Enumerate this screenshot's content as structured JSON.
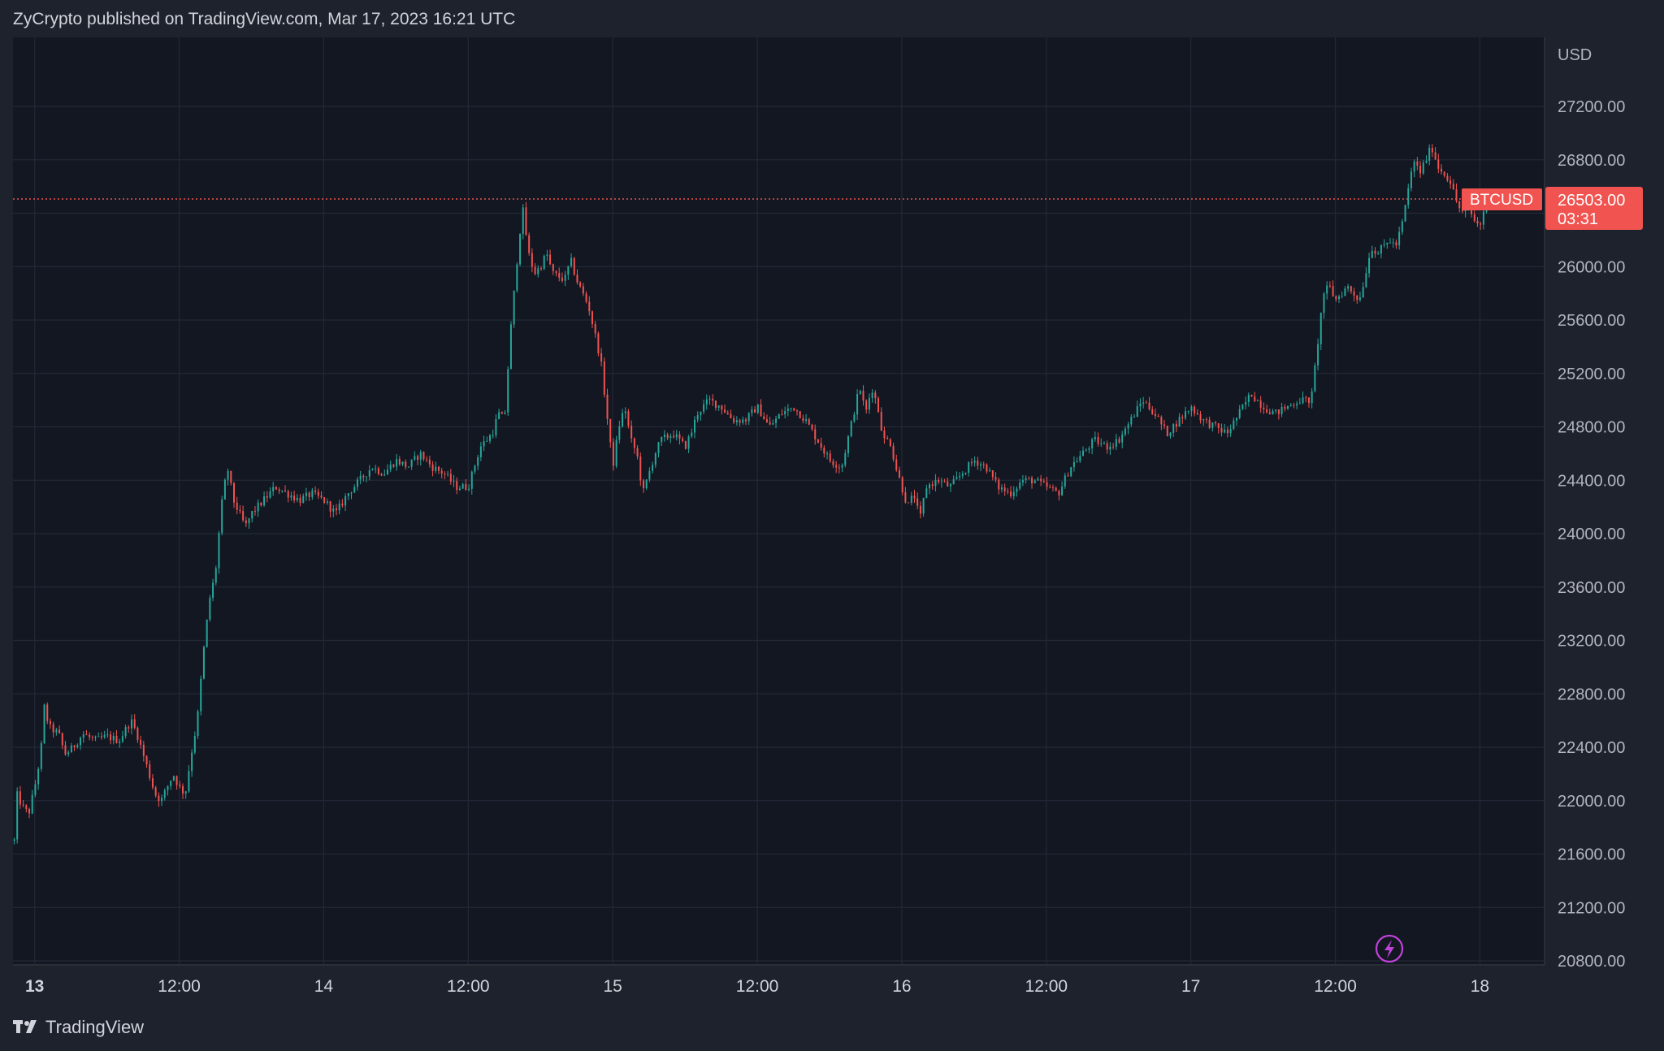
{
  "header": {
    "text": "ZyCrypto published on TradingView.com, Mar 17, 2023 16:21 UTC"
  },
  "footer": {
    "brand": "TradingView"
  },
  "colors": {
    "background": "#131722",
    "frame": "#1e222d",
    "grid": "#232836",
    "up": "#26a69a",
    "down": "#ef5350",
    "last_price_label": "#f05350",
    "lightning_icon": "#c042d8"
  },
  "icons": {
    "lightning": "lightning-icon",
    "logo": "tradingview-logo-icon"
  },
  "chart_data": {
    "type": "candlestick",
    "symbol": "BTCUSD",
    "currency": "USD",
    "last_price": 26503.0,
    "last_price_label": "26503.00",
    "countdown": "03:31",
    "y_ticks": [
      "27200.00",
      "26800.00",
      "26400.00",
      "26000.00",
      "25600.00",
      "25200.00",
      "24800.00",
      "24400.00",
      "24000.00",
      "23600.00",
      "23200.00",
      "22800.00",
      "22400.00",
      "22000.00",
      "21600.00",
      "21200.00",
      "20800.00"
    ],
    "y_range": [
      20800,
      27200
    ],
    "x_ticks": [
      {
        "label": "13",
        "hour": 0,
        "bold": true
      },
      {
        "label": "12:00",
        "hour": 12
      },
      {
        "label": "14",
        "hour": 24
      },
      {
        "label": "12:00",
        "hour": 36
      },
      {
        "label": "15",
        "hour": 48
      },
      {
        "label": "12:00",
        "hour": 60
      },
      {
        "label": "16",
        "hour": 72
      },
      {
        "label": "12:00",
        "hour": 84
      },
      {
        "label": "17",
        "hour": 96
      },
      {
        "label": "12:00",
        "hour": 108
      },
      {
        "label": "18",
        "hour": 120
      }
    ],
    "x_range_hours": [
      -1.8,
      125.3
    ],
    "price_path": [
      [
        -1.7,
        21700
      ],
      [
        -1.5,
        22050
      ],
      [
        -1.0,
        21950
      ],
      [
        -0.5,
        21900
      ],
      [
        0.0,
        22100
      ],
      [
        0.5,
        22350
      ],
      [
        0.8,
        22700
      ],
      [
        1.2,
        22550
      ],
      [
        2.0,
        22500
      ],
      [
        2.5,
        22350
      ],
      [
        3.0,
        22380
      ],
      [
        4.0,
        22500
      ],
      [
        5.0,
        22450
      ],
      [
        6.0,
        22480
      ],
      [
        7.0,
        22450
      ],
      [
        8.0,
        22600
      ],
      [
        8.5,
        22500
      ],
      [
        9.0,
        22350
      ],
      [
        9.5,
        22200
      ],
      [
        10.0,
        22050
      ],
      [
        10.5,
        22000
      ],
      [
        11.0,
        22100
      ],
      [
        11.5,
        22200
      ],
      [
        12.0,
        22100
      ],
      [
        12.5,
        22050
      ],
      [
        13.0,
        22350
      ],
      [
        13.5,
        22600
      ],
      [
        14.0,
        23100
      ],
      [
        14.5,
        23500
      ],
      [
        15.0,
        23700
      ],
      [
        15.5,
        24200
      ],
      [
        16.0,
        24500
      ],
      [
        16.5,
        24250
      ],
      [
        17.0,
        24150
      ],
      [
        17.5,
        24050
      ],
      [
        18.0,
        24150
      ],
      [
        19.0,
        24250
      ],
      [
        20.0,
        24350
      ],
      [
        21.0,
        24300
      ],
      [
        22.0,
        24250
      ],
      [
        23.0,
        24300
      ],
      [
        24.0,
        24250
      ],
      [
        25.0,
        24150
      ],
      [
        26.0,
        24300
      ],
      [
        27.0,
        24400
      ],
      [
        28.0,
        24500
      ],
      [
        29.0,
        24450
      ],
      [
        30.0,
        24550
      ],
      [
        31.0,
        24500
      ],
      [
        32.0,
        24600
      ],
      [
        33.0,
        24500
      ],
      [
        34.0,
        24450
      ],
      [
        35.0,
        24350
      ],
      [
        36.0,
        24350
      ],
      [
        37.0,
        24650
      ],
      [
        38.0,
        24750
      ],
      [
        38.5,
        24900
      ],
      [
        39.0,
        24850
      ],
      [
        39.5,
        25500
      ],
      [
        40.0,
        26000
      ],
      [
        40.5,
        26450
      ],
      [
        41.0,
        26100
      ],
      [
        41.5,
        25950
      ],
      [
        42.0,
        26000
      ],
      [
        42.5,
        26100
      ],
      [
        43.0,
        25950
      ],
      [
        44.0,
        25900
      ],
      [
        44.5,
        26050
      ],
      [
        45.0,
        25900
      ],
      [
        45.5,
        25800
      ],
      [
        46.0,
        25700
      ],
      [
        46.5,
        25500
      ],
      [
        47.0,
        25300
      ],
      [
        47.5,
        24900
      ],
      [
        48.0,
        24500
      ],
      [
        48.5,
        24800
      ],
      [
        49.0,
        24950
      ],
      [
        49.5,
        24700
      ],
      [
        50.0,
        24600
      ],
      [
        50.5,
        24300
      ],
      [
        51.0,
        24450
      ],
      [
        51.5,
        24600
      ],
      [
        52.0,
        24700
      ],
      [
        53.0,
        24750
      ],
      [
        54.0,
        24650
      ],
      [
        54.5,
        24750
      ],
      [
        55.0,
        24900
      ],
      [
        56.0,
        25000
      ],
      [
        57.0,
        24950
      ],
      [
        58.0,
        24850
      ],
      [
        59.0,
        24850
      ],
      [
        60.0,
        24950
      ],
      [
        61.0,
        24800
      ],
      [
        62.0,
        24900
      ],
      [
        63.0,
        24950
      ],
      [
        64.0,
        24850
      ],
      [
        65.0,
        24700
      ],
      [
        66.0,
        24550
      ],
      [
        67.0,
        24500
      ],
      [
        67.5,
        24700
      ],
      [
        68.0,
        24900
      ],
      [
        68.5,
        25100
      ],
      [
        69.0,
        24900
      ],
      [
        69.5,
        25100
      ],
      [
        70.0,
        24950
      ],
      [
        70.5,
        24700
      ],
      [
        71.0,
        24700
      ],
      [
        71.5,
        24500
      ],
      [
        72.0,
        24350
      ],
      [
        72.5,
        24200
      ],
      [
        73.0,
        24300
      ],
      [
        73.5,
        24100
      ],
      [
        74.0,
        24350
      ],
      [
        75.0,
        24400
      ],
      [
        76.0,
        24350
      ],
      [
        77.0,
        24450
      ],
      [
        78.0,
        24550
      ],
      [
        79.0,
        24500
      ],
      [
        80.0,
        24350
      ],
      [
        81.0,
        24300
      ],
      [
        82.0,
        24400
      ],
      [
        83.0,
        24400
      ],
      [
        84.0,
        24350
      ],
      [
        85.0,
        24300
      ],
      [
        86.0,
        24500
      ],
      [
        87.0,
        24600
      ],
      [
        88.0,
        24700
      ],
      [
        89.0,
        24650
      ],
      [
        90.0,
        24700
      ],
      [
        91.0,
        24850
      ],
      [
        92.0,
        25000
      ],
      [
        93.0,
        24900
      ],
      [
        94.0,
        24750
      ],
      [
        95.0,
        24850
      ],
      [
        96.0,
        24950
      ],
      [
        97.0,
        24850
      ],
      [
        98.0,
        24800
      ],
      [
        99.0,
        24750
      ],
      [
        100.0,
        24900
      ],
      [
        101.0,
        25050
      ],
      [
        102.0,
        24950
      ],
      [
        103.0,
        24900
      ],
      [
        104.0,
        24950
      ],
      [
        105.0,
        25000
      ],
      [
        106.0,
        25000
      ],
      [
        106.5,
        25400
      ],
      [
        107.0,
        25800
      ],
      [
        107.5,
        25850
      ],
      [
        108.0,
        25750
      ],
      [
        108.5,
        25800
      ],
      [
        109.0,
        25850
      ],
      [
        110.0,
        25750
      ],
      [
        110.5,
        25950
      ],
      [
        111.0,
        26150
      ],
      [
        111.5,
        26100
      ],
      [
        112.0,
        26150
      ],
      [
        112.5,
        26200
      ],
      [
        113.0,
        26150
      ],
      [
        113.5,
        26300
      ],
      [
        114.0,
        26550
      ],
      [
        114.5,
        26800
      ],
      [
        115.0,
        26700
      ],
      [
        115.5,
        26800
      ],
      [
        116.0,
        26900
      ],
      [
        116.5,
        26750
      ],
      [
        117.0,
        26700
      ],
      [
        117.5,
        26650
      ],
      [
        118.0,
        26500
      ],
      [
        118.5,
        26400
      ],
      [
        119.0,
        26450
      ],
      [
        119.5,
        26350
      ],
      [
        120.0,
        26300
      ],
      [
        120.5,
        26500
      ],
      [
        121.0,
        26503
      ]
    ]
  }
}
